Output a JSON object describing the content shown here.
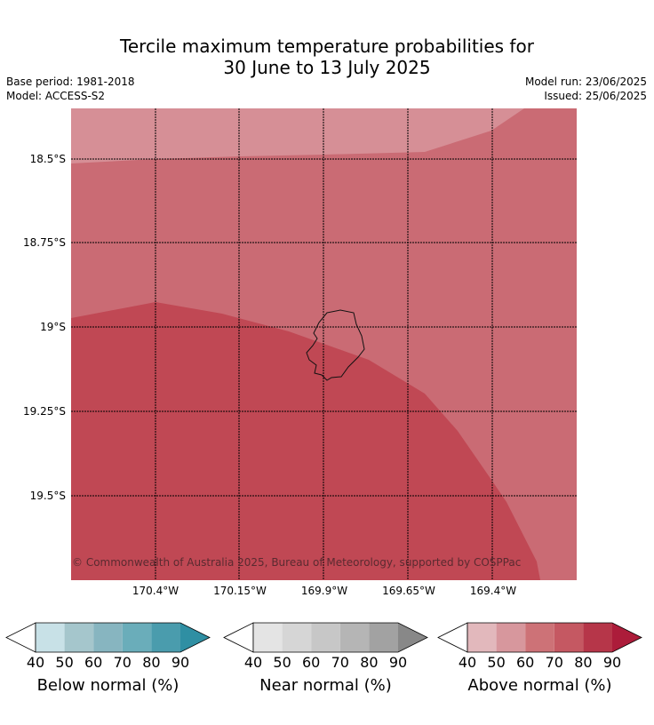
{
  "title_line1": "Tercile maximum temperature probabilities for",
  "title_line2": "30 June to 13 July 2025",
  "meta": {
    "base_period": "Base period: 1981-2018",
    "model": "Model: ACCESS-S2",
    "model_run": "Model run: 23/06/2025",
    "issued": "Issued: 25/06/2025"
  },
  "map": {
    "lat_labels": [
      "18.5°S",
      "18.75°S",
      "19°S",
      "19.25°S",
      "19.5°S"
    ],
    "lon_labels": [
      "170.4°W",
      "170.15°W",
      "169.9°W",
      "169.65°W",
      "169.4°W"
    ],
    "copyright": "© Commonwealth of Australia 2025, Bureau of Meteorology, supported by COSPPac",
    "region_colors": {
      "band_50_60": "#d68f96",
      "band_60_70": "#ca6b74",
      "band_70_80": "#c04854"
    }
  },
  "colorbars": [
    {
      "label": "Below normal (%)",
      "ticks": [
        "40",
        "50",
        "60",
        "70",
        "80",
        "90"
      ],
      "colors": [
        "#c8e1e7",
        "#a5c6cc",
        "#87b5c0",
        "#6aadba",
        "#4a9cad",
        "#2f8fa3"
      ]
    },
    {
      "label": "Near normal (%)",
      "ticks": [
        "40",
        "50",
        "60",
        "70",
        "80",
        "90"
      ],
      "colors": [
        "#e4e4e4",
        "#d6d6d6",
        "#c7c7c7",
        "#b5b5b5",
        "#a2a2a2",
        "#888888"
      ]
    },
    {
      "label": "Above normal (%)",
      "ticks": [
        "40",
        "50",
        "60",
        "70",
        "80",
        "90"
      ],
      "colors": [
        "#e2b8bc",
        "#d7979d",
        "#cd7277",
        "#c55862",
        "#b63649",
        "#ac1c3a"
      ]
    }
  ]
}
